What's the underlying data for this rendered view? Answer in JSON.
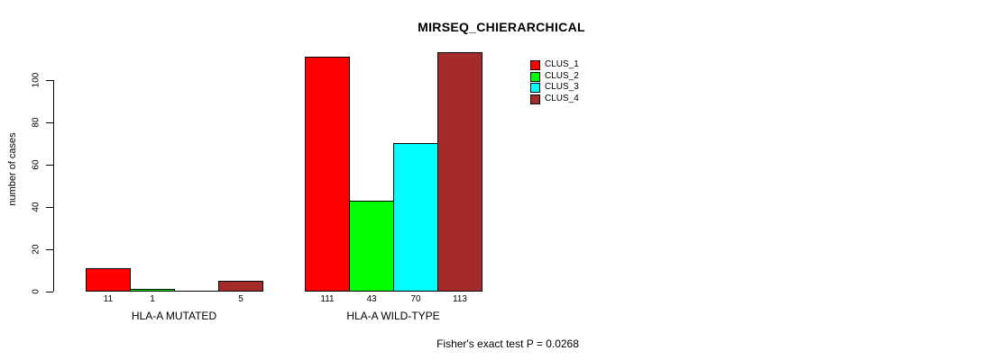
{
  "chart_data": {
    "type": "bar",
    "title": "MIRSEQ_CHIERARCHICAL",
    "xlabel": "",
    "ylabel": "number of cases",
    "categories": [
      "HLA-A MUTATED",
      "HLA-A WILD-TYPE"
    ],
    "series": [
      {
        "name": "CLUS_1",
        "color": "#FF0000",
        "values": [
          11,
          111
        ]
      },
      {
        "name": "CLUS_2",
        "color": "#00FF00",
        "values": [
          1,
          43
        ]
      },
      {
        "name": "CLUS_3",
        "color": "#00FFFF",
        "values": [
          0,
          70
        ]
      },
      {
        "name": "CLUS_4",
        "color": "#A52A2A",
        "values": [
          5,
          113
        ]
      }
    ],
    "yticks": [
      0,
      20,
      40,
      60,
      80,
      100
    ],
    "ylim": [
      0,
      117
    ],
    "grid": false,
    "legend_position": "top-right",
    "bar_value_labels_visible": true,
    "zero_value_labels_hidden": true,
    "annotation": "Fisher's exact test P = 0.0268"
  }
}
